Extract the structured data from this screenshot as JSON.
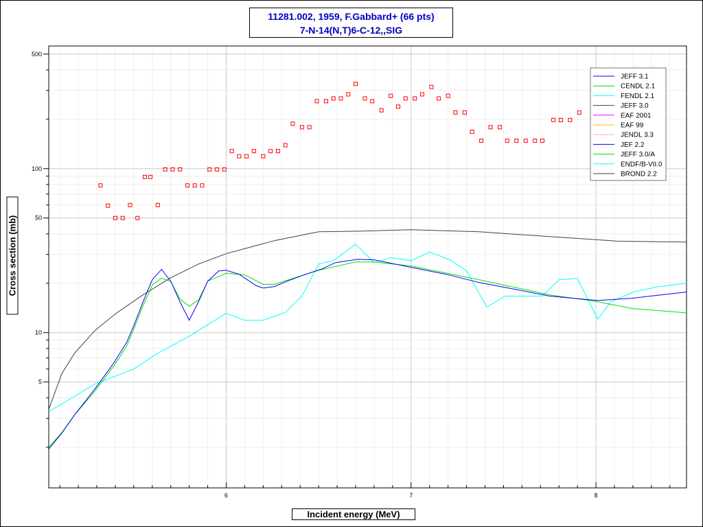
{
  "title": {
    "line1": "11281.002, 1959, F.Gabbard+ (66 pts)",
    "line2": "7-N-14(N,T)6-C-12,,SIG"
  },
  "chart_data": {
    "type": "line",
    "title": "11281.002, 1959, F.Gabbard+ (66 pts) / 7-N-14(N,T)6-C-12,,SIG",
    "xlabel": "Incident energy (MeV)",
    "ylabel": "Cross section (mb)",
    "xlim": [
      5.04,
      8.49
    ],
    "ylim": [
      1.13,
      560
    ],
    "yscale": "log",
    "grid": true,
    "legend_placement": "top-right",
    "x_ticks": [
      "6",
      "7",
      "8"
    ],
    "y_ticks": [
      "5",
      "10",
      "50",
      "100",
      "500"
    ],
    "legend": [
      {
        "name": "JEFF 3.1",
        "color": "#0000ff"
      },
      {
        "name": "CENDL 2.1",
        "color": "#00e000"
      },
      {
        "name": "FENDL 2.1",
        "color": "#00ffff"
      },
      {
        "name": "JEFF 3.0",
        "color": "#404040"
      },
      {
        "name": "EAF 2001",
        "color": "#ff00ff"
      },
      {
        "name": "EAF 99",
        "color": "#ffc000"
      },
      {
        "name": "JENDL 3.3",
        "color": "#ffb0b0"
      },
      {
        "name": "JEF 2.2",
        "color": "#0000ff"
      },
      {
        "name": "JEFF 3.0/A",
        "color": "#00e000"
      },
      {
        "name": "ENDF/B-VII.0",
        "color": "#00ffff"
      },
      {
        "name": "BROND 2.2",
        "color": "#404040"
      }
    ],
    "series": [
      {
        "name": "BROND 2.2",
        "color": "#404040",
        "x": [
          5.04,
          5.11,
          5.18,
          5.29,
          5.4,
          5.55,
          5.7,
          5.85,
          6.0,
          6.26,
          6.5,
          6.74,
          7.0,
          7.37,
          7.75,
          8.12,
          8.49
        ],
        "y": [
          3.4,
          5.6,
          7.5,
          10.3,
          13.0,
          17.0,
          21.6,
          26.2,
          30.3,
          36.4,
          41.2,
          41.6,
          42.4,
          41.2,
          38.5,
          36.1,
          35.7
        ]
      },
      {
        "name": "ENDF/B-VII.0",
        "color": "#00ffff",
        "x": [
          5.04,
          5.15,
          5.29,
          5.5,
          5.63,
          5.8,
          5.89,
          6.0,
          6.1,
          6.2,
          6.32,
          6.41,
          6.5,
          6.58,
          6.7,
          6.8,
          6.89,
          7.0,
          7.1,
          7.21,
          7.3,
          7.41,
          7.51,
          7.71,
          7.8,
          7.9,
          8.01,
          8.08,
          8.21,
          8.34,
          8.49
        ],
        "y": [
          3.3,
          3.9,
          4.86,
          6.0,
          7.5,
          9.5,
          11.0,
          13.1,
          11.9,
          11.9,
          13.3,
          16.7,
          26.2,
          27.5,
          34.6,
          26.7,
          28.6,
          27.5,
          31,
          27.8,
          23.8,
          14.3,
          16.7,
          16.7,
          21,
          21.4,
          12.1,
          15.4,
          17.8,
          19.1,
          20.0
        ]
      },
      {
        "name": "CENDL 2.1",
        "color": "#00e000",
        "x": [
          5.04,
          5.11,
          5.18,
          5.29,
          5.39,
          5.46,
          5.5,
          5.55,
          5.6,
          5.65,
          5.7,
          5.75,
          5.8,
          5.85,
          5.9,
          6.0,
          6.1,
          6.2,
          6.26,
          6.5,
          6.7,
          6.8,
          7.0,
          7.37,
          7.75,
          8.0,
          8.2,
          8.49
        ],
        "y": [
          2.0,
          2.45,
          3.15,
          4.4,
          6.2,
          8.2,
          10.5,
          14.6,
          19.5,
          21.5,
          20.5,
          16,
          14.5,
          15.8,
          20.6,
          23,
          22.5,
          19.7,
          19.7,
          24,
          27,
          27,
          25.5,
          21,
          17,
          15.5,
          14,
          13.2
        ]
      },
      {
        "name": "JEFF 3.1",
        "color": "#0000ff",
        "x": [
          5.04,
          5.11,
          5.18,
          5.29,
          5.39,
          5.46,
          5.5,
          5.55,
          5.6,
          5.65,
          5.7,
          5.75,
          5.8,
          5.85,
          5.9,
          5.96,
          6.0,
          6.07,
          6.16,
          6.2,
          6.26,
          6.33,
          6.43,
          6.52,
          6.59,
          6.71,
          6.8,
          7.0,
          7.19,
          7.37,
          7.56,
          7.75,
          8.01,
          8.19,
          8.49
        ],
        "y": [
          1.95,
          2.43,
          3.15,
          4.54,
          6.48,
          8.65,
          11.0,
          15.4,
          21.0,
          24.3,
          20.6,
          15.4,
          11.9,
          15.4,
          20.6,
          23.8,
          24.0,
          22.7,
          19.4,
          18.7,
          19.1,
          20.6,
          22.7,
          24.5,
          26.7,
          28.0,
          27.8,
          25.0,
          22.7,
          20.2,
          18.4,
          16.7,
          15.7,
          16.2,
          17.7
        ]
      }
    ],
    "points": {
      "name": "11281.002",
      "color": "#ff0000",
      "x": [
        5.32,
        5.36,
        5.4,
        5.44,
        5.48,
        5.52,
        5.56,
        5.59,
        5.63,
        5.67,
        5.71,
        5.75,
        5.79,
        5.83,
        5.87,
        5.91,
        5.95,
        5.99,
        6.03,
        6.07,
        6.11,
        6.15,
        6.2,
        6.24,
        6.28,
        6.32,
        6.36,
        6.41,
        6.45,
        6.49,
        6.54,
        6.58,
        6.62,
        6.66,
        6.7,
        6.75,
        6.79,
        6.84,
        6.89,
        6.93,
        6.97,
        7.02,
        7.06,
        7.11,
        7.15,
        7.2,
        7.24,
        7.29,
        7.33,
        7.38,
        7.43,
        7.48,
        7.52,
        7.57,
        7.62,
        7.67,
        7.71,
        7.77,
        7.81,
        7.86,
        7.91
      ],
      "y": [
        79,
        59.5,
        50,
        50,
        60,
        50,
        89,
        89,
        60,
        99,
        99,
        99,
        79,
        79,
        79,
        99,
        99,
        99,
        128,
        119,
        119,
        128,
        119,
        128,
        128,
        139,
        188,
        179,
        179,
        258,
        258,
        268,
        268,
        284,
        329,
        268,
        258,
        227,
        278,
        239,
        268,
        268,
        284,
        315,
        268,
        278,
        220,
        220,
        168,
        148,
        179,
        179,
        148,
        148,
        148,
        148,
        148,
        198,
        198,
        198,
        220
      ]
    }
  }
}
